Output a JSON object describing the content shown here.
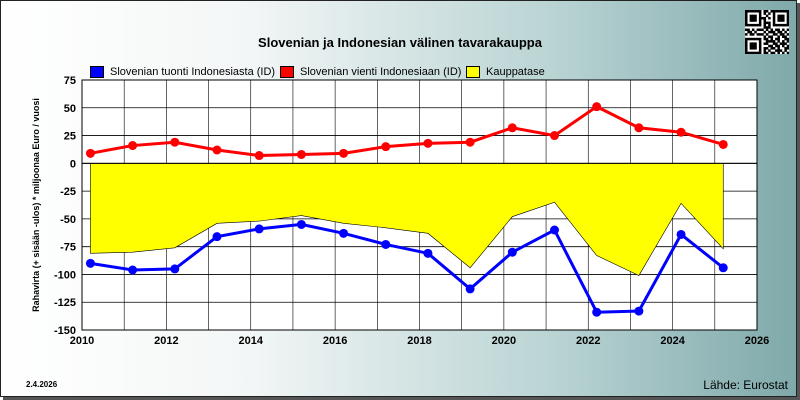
{
  "chart_data": {
    "type": "line",
    "title": "Slovenian ja Indonesian välinen tavarakauppa",
    "ylabel": "Rahavirta (+ sisään -ulos)  * miljoonaa Euro / vuosi",
    "xlabel": "",
    "xlim": [
      2010,
      2026
    ],
    "ylim": [
      -150,
      75
    ],
    "x_ticks": [
      "2010",
      "2012",
      "2014",
      "2016",
      "2018",
      "2020",
      "2022",
      "2024",
      "2026"
    ],
    "y_ticks": [
      "75",
      "50",
      "25",
      "0",
      "-25",
      "-50",
      "-75",
      "-100",
      "-125",
      "-150"
    ],
    "x": [
      2010.2,
      2011.2,
      2012.2,
      2013.2,
      2014.2,
      2015.2,
      2016.2,
      2017.2,
      2018.2,
      2019.2,
      2020.2,
      2021.2,
      2022.2,
      2023.2,
      2024.2,
      2025.2
    ],
    "series": [
      {
        "name": "Slovenian tuonti Indonesiasta (ID)",
        "color": "#0000ff",
        "kind": "line",
        "values": [
          -90,
          -96,
          -95,
          -66,
          -59,
          -55,
          -63,
          -73,
          -81,
          -113,
          -80,
          -60,
          -134,
          -133,
          -64,
          -94
        ]
      },
      {
        "name": "Slovenian vienti Indonesiaan (ID)",
        "color": "#ff0000",
        "kind": "line",
        "values": [
          9,
          16,
          19,
          12,
          7,
          8,
          9,
          15,
          18,
          19,
          32,
          25,
          51,
          32,
          28,
          17
        ]
      },
      {
        "name": "Kauppatase",
        "color": "#ffff00",
        "kind": "area",
        "values": [
          -81,
          -80,
          -76,
          -54,
          -52,
          -47,
          -54,
          -58,
          -63,
          -94,
          -48,
          -35,
          -83,
          -101,
          -36,
          -77
        ]
      }
    ],
    "grid": true,
    "legend_position": "top"
  },
  "footer": {
    "date": "2.4.2026",
    "source": "Lähde: Eurostat"
  },
  "qr_icon": "qr-code-icon"
}
